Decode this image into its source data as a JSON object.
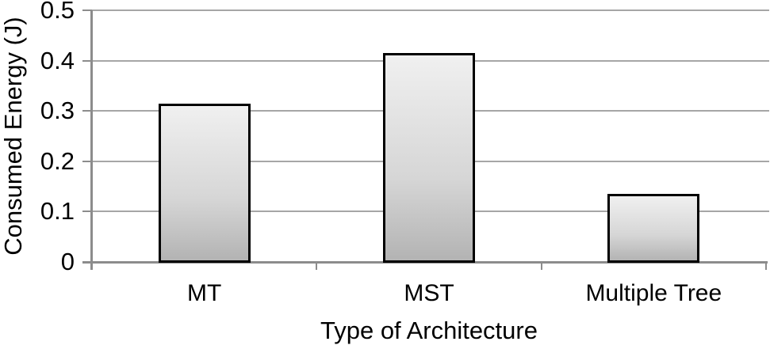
{
  "chart_data": {
    "type": "bar",
    "title": "",
    "xlabel": "Type of Architecture",
    "ylabel": "Consumed Energy (J)",
    "categories": [
      "MT",
      "MST",
      "Multiple Tree"
    ],
    "values": [
      0.315,
      0.415,
      0.135
    ],
    "ylim": [
      0,
      0.5
    ],
    "yticks": [
      0,
      0.1,
      0.2,
      0.3,
      0.4,
      0.5
    ],
    "ytick_labels": [
      "0",
      "0.1",
      "0.2",
      "0.3",
      "0.4",
      "0.5"
    ],
    "grid": "horizontal",
    "legend": "none",
    "colors": {
      "background": "#ffffff",
      "text": "#000000",
      "grid_line": "#a6a6a6",
      "axis_line": "#8c8c8c",
      "bar_border": "#000000",
      "bar_gradient_top": "#f0f0f0",
      "bar_gradient_mid": "#d6d6d6",
      "bar_gradient_bottom": "#b3b3b3"
    }
  }
}
